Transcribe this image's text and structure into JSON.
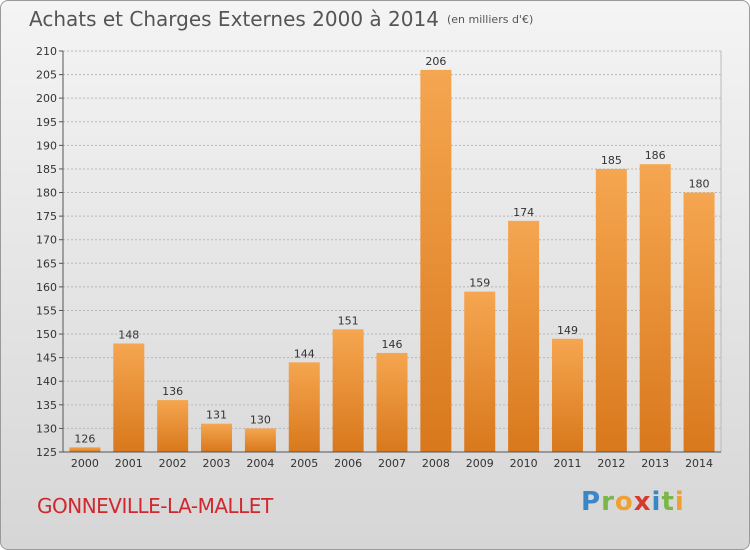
{
  "title": "Achats et Charges Externes 2000 à 2014",
  "unit": "(en milliers d'€)",
  "commune": "GONNEVILLE-LA-MALLET",
  "logo": [
    "P",
    "r",
    "o",
    "x",
    "i",
    "t",
    "i"
  ],
  "colors": {
    "bar_light": "#f5a650",
    "bar_dark": "#d9781c",
    "grid": "#b8b8b8",
    "commune": "#d0282e"
  },
  "chart_data": {
    "type": "bar",
    "title": "Achats et Charges Externes 2000 à 2014",
    "ylabel": "(en milliers d'€)",
    "categories": [
      "2000",
      "2001",
      "2002",
      "2003",
      "2004",
      "2005",
      "2006",
      "2007",
      "2008",
      "2009",
      "2010",
      "2011",
      "2012",
      "2013",
      "2014"
    ],
    "values": [
      126,
      148,
      136,
      131,
      130,
      144,
      151,
      146,
      206,
      159,
      174,
      149,
      185,
      186,
      180
    ],
    "ylim": [
      125,
      210
    ],
    "yticks": [
      125,
      130,
      135,
      140,
      145,
      150,
      155,
      160,
      165,
      170,
      175,
      180,
      185,
      190,
      195,
      200,
      205,
      210
    ],
    "grid": true
  }
}
